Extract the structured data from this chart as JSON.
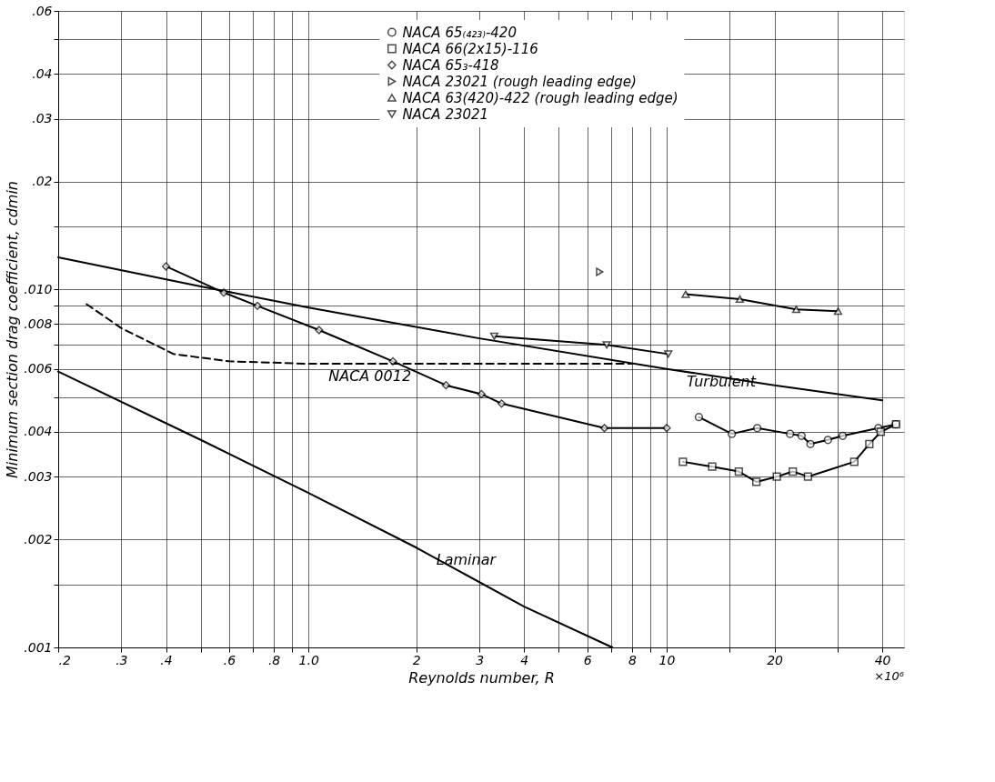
{
  "chart_data": {
    "type": "line",
    "xlabel": "Reynolds number, R",
    "ylabel": "Minimum section drag coefficient, cdmin",
    "log": "xy",
    "xlim": [
      0.2,
      46
    ],
    "ylim": [
      0.001,
      0.06
    ],
    "xticks": [
      {
        "value": 0.2,
        "label": ".2"
      },
      {
        "value": 0.3,
        "label": ".3"
      },
      {
        "value": 0.4,
        "label": ".4"
      },
      {
        "value": 0.5,
        "label": null
      },
      {
        "value": 0.6,
        "label": ".6"
      },
      {
        "value": 0.7,
        "label": null
      },
      {
        "value": 0.8,
        "label": ".8"
      },
      {
        "value": 0.9,
        "label": null
      },
      {
        "value": 1,
        "label": "1.0"
      },
      2,
      3,
      4,
      {
        "value": 5,
        "label": null
      },
      6,
      {
        "value": 7,
        "label": null
      },
      8,
      {
        "value": 9,
        "label": null
      },
      10,
      {
        "value": 15,
        "label": null
      },
      20,
      {
        "value": 30,
        "label": null
      },
      {
        "value": 40,
        "label": "40"
      }
    ],
    "annotations": [
      "×10⁶"
    ],
    "yticks": [
      {
        "value": 0.001,
        "label": ".001"
      },
      {
        "value": 0.0015,
        "label": null
      },
      {
        "value": 0.002,
        "label": ".002"
      },
      {
        "value": 0.003,
        "label": ".003"
      },
      {
        "value": 0.004,
        "label": ".004"
      },
      {
        "value": 0.005,
        "label": null
      },
      {
        "value": 0.006,
        "label": ".006"
      },
      {
        "value": 0.007,
        "label": null
      },
      {
        "value": 0.008,
        "label": ".008"
      },
      {
        "value": 0.009,
        "label": null
      },
      {
        "value": 0.01,
        "label": ".010"
      },
      {
        "value": 0.015,
        "label": null
      },
      {
        "value": 0.02,
        "label": ".02"
      },
      {
        "value": 0.03,
        "label": ".03"
      },
      {
        "value": 0.04,
        "label": ".04"
      },
      {
        "value": 0.05,
        "label": null
      },
      {
        "value": 0.06,
        "label": ".06"
      }
    ],
    "grid": true,
    "legend": "top",
    "series": [
      {
        "name": "NACA 65₍₄₂₃₎-420",
        "color": "#000000",
        "marker": "circle",
        "x": [
          12.3,
          15.2,
          17.9,
          22.1,
          23.8,
          25.2,
          28.2,
          31,
          39,
          43.6
        ],
        "values": [
          0.0044,
          0.00395,
          0.0041,
          0.00395,
          0.0039,
          0.0037,
          0.0038,
          0.0039,
          0.0041,
          0.0042
        ]
      },
      {
        "name": "NACA 66(2x15)-116",
        "color": "#000000",
        "marker": "square",
        "x": [
          11.1,
          13.4,
          15.9,
          17.8,
          20.3,
          22.5,
          24.8,
          33.4,
          36.8,
          39.6,
          43.7
        ],
        "values": [
          0.0033,
          0.0032,
          0.0031,
          0.0029,
          0.003,
          0.0031,
          0.003,
          0.0033,
          0.0037,
          0.004,
          0.0042
        ]
      },
      {
        "name": "NACA 65₃-418",
        "color": "#000000",
        "marker": "diamond",
        "x": [
          0.4,
          0.58,
          0.72,
          1.07,
          1.72,
          2.42,
          3.04,
          3.46,
          6.7,
          10
        ],
        "values": [
          0.0116,
          0.0098,
          0.009,
          0.0077,
          0.0063,
          0.0054,
          0.0051,
          0.0048,
          0.0041,
          0.0041
        ]
      },
      {
        "name": "NACA 23021 (rough leading edge)",
        "color": "#000000",
        "marker": "triangle-right",
        "x": [
          6.5
        ],
        "values": [
          0.0112
        ]
      },
      {
        "name": "NACA 63(420)-422 (rough leading edge)",
        "color": "#000000",
        "marker": "triangle",
        "x": [
          11.3,
          16,
          23,
          30.1
        ],
        "values": [
          0.0097,
          0.0094,
          0.0088,
          0.0087
        ]
      },
      {
        "name": "NACA 23021",
        "color": "#000000",
        "marker": "triangle-down",
        "x": [
          3.3,
          6.8,
          10.1
        ],
        "values": [
          0.0074,
          0.007,
          0.0066
        ]
      },
      {
        "name": "NACA 0012",
        "color": "#000000",
        "marker": "none",
        "line_style": "dashed",
        "x": [
          0.24,
          0.3,
          0.42,
          0.6,
          1,
          2,
          4,
          8
        ],
        "values": [
          0.0091,
          0.0078,
          0.0066,
          0.0063,
          0.0062,
          0.0062,
          0.0062,
          0.0062
        ]
      },
      {
        "name": "Turbulent",
        "color": "#000000",
        "marker": "none",
        "line_style": "solid",
        "x": [
          0.2,
          0.5,
          1,
          3,
          10,
          20,
          40
        ],
        "values": [
          0.0123,
          0.0102,
          0.0089,
          0.0073,
          0.006,
          0.0054,
          0.0049
        ]
      },
      {
        "name": "Laminar",
        "color": "#000000",
        "marker": "none",
        "line_style": "solid",
        "x": [
          0.2,
          0.5,
          1,
          2,
          4,
          7.05
        ],
        "values": [
          0.0059,
          0.0038,
          0.0027,
          0.0019,
          0.0013,
          0.001
        ]
      }
    ]
  }
}
